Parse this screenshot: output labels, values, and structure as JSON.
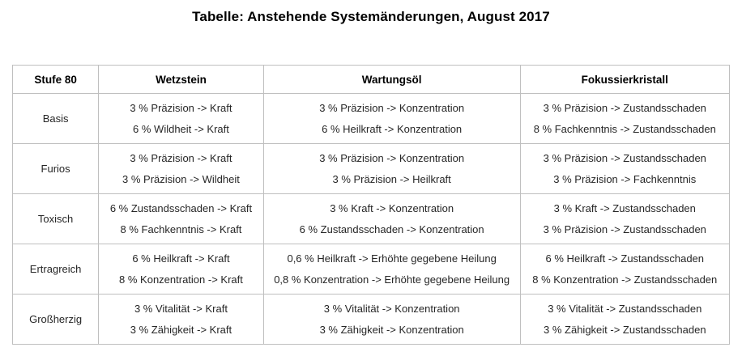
{
  "title": "Tabelle: Anstehende Systemänderungen, August 2017",
  "table": {
    "headers": [
      "Stufe 80",
      "Wetzstein",
      "Wartungsöl",
      "Fokussierkristall"
    ],
    "rows": [
      {
        "label": "Basis",
        "cells": [
          [
            "3 % Präzision -> Kraft",
            "6 % Wildheit -> Kraft"
          ],
          [
            "3 % Präzision -> Konzentration",
            "6 % Heilkraft -> Konzentration"
          ],
          [
            "3 % Präzision -> Zustandsschaden",
            "8 % Fachkenntnis -> Zustandsschaden"
          ]
        ]
      },
      {
        "label": "Furios",
        "cells": [
          [
            "3 % Präzision -> Kraft",
            "3 % Präzision -> Wildheit"
          ],
          [
            "3 % Präzision -> Konzentration",
            "3 % Präzision -> Heilkraft"
          ],
          [
            "3 % Präzision -> Zustandsschaden",
            "3 % Präzision -> Fachkenntnis"
          ]
        ]
      },
      {
        "label": "Toxisch",
        "cells": [
          [
            "6 % Zustandsschaden -> Kraft",
            "8 % Fachkenntnis -> Kraft"
          ],
          [
            "3 % Kraft -> Konzentration",
            "6 % Zustandsschaden -> Konzentration"
          ],
          [
            "3 % Kraft -> Zustandsschaden",
            "3 % Präzision -> Zustandsschaden"
          ]
        ]
      },
      {
        "label": "Ertragreich",
        "cells": [
          [
            "6 % Heilkraft -> Kraft",
            "8 % Konzentration -> Kraft"
          ],
          [
            "0,6 % Heilkraft -> Erhöhte gegebene Heilung",
            "0,8 % Konzentration -> Erhöhte gegebene Heilung"
          ],
          [
            "6 % Heilkraft -> Zustandsschaden",
            "8 % Konzentration -> Zustandsschaden"
          ]
        ]
      },
      {
        "label": "Großherzig",
        "cells": [
          [
            "3 % Vitalität -> Kraft",
            "3 % Zähigkeit -> Kraft"
          ],
          [
            "3 % Vitalität -> Konzentration",
            "3 % Zähigkeit -> Konzentration"
          ],
          [
            "3 % Vitalität -> Zustandsschaden",
            "3 % Zähigkeit -> Zustandsschaden"
          ]
        ]
      }
    ],
    "border_color": "#bfbfbf",
    "text_color": "#262626"
  }
}
